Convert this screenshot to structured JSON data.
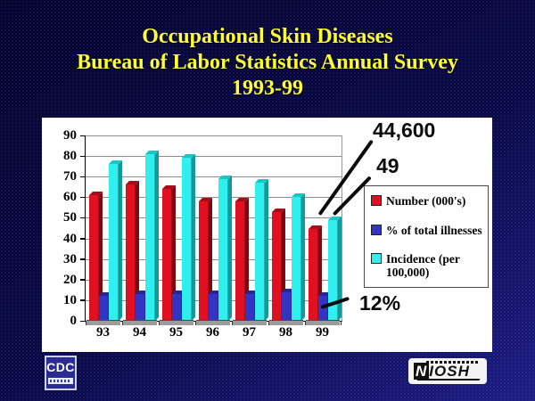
{
  "slide": {
    "title_lines": [
      "Occupational Skin Diseases",
      "Bureau of Labor Statistics Annual Survey",
      "1993-99"
    ],
    "title_color": "#ffff33",
    "background_colors": [
      "#050530",
      "#1d1d85"
    ]
  },
  "chart_data": {
    "type": "bar",
    "title": "Occupational Skin Diseases, Bureau of Labor Statistics Annual Survey 1993-99",
    "categories": [
      "93",
      "94",
      "95",
      "96",
      "97",
      "98",
      "99"
    ],
    "series": [
      {
        "name": "Number (000's)",
        "color": "#e01020",
        "side": "#7a0a12",
        "top": "#a80c18",
        "values": [
          61,
          66,
          64,
          58,
          58,
          53,
          44.6
        ]
      },
      {
        "name": "% of total illnesses",
        "color": "#3434c4",
        "side": "#1b1b6e",
        "top": "#26269a",
        "values": [
          12,
          13,
          13,
          13,
          13,
          14,
          12
        ]
      },
      {
        "name": "Incidence (per 100,000)",
        "color": "#30efef",
        "side": "#129a9a",
        "top": "#1cc4c4",
        "values": [
          76,
          81,
          79,
          69,
          67,
          60,
          49
        ]
      }
    ],
    "xlabel": "",
    "ylabel": "",
    "ylim": [
      0,
      90
    ],
    "ytick_step": 10,
    "grid": true,
    "legend_position": "right",
    "annotations": [
      {
        "text": "44,600",
        "points_to": "Number (000's) bar, year 99"
      },
      {
        "text": "49",
        "points_to": "Incidence (per 100,000) bar, year 99"
      },
      {
        "text": "12%",
        "points_to": "% of total illnesses bar, year 99"
      }
    ]
  },
  "logos": {
    "cdc": "CDC",
    "niosh": "NIOSH"
  }
}
